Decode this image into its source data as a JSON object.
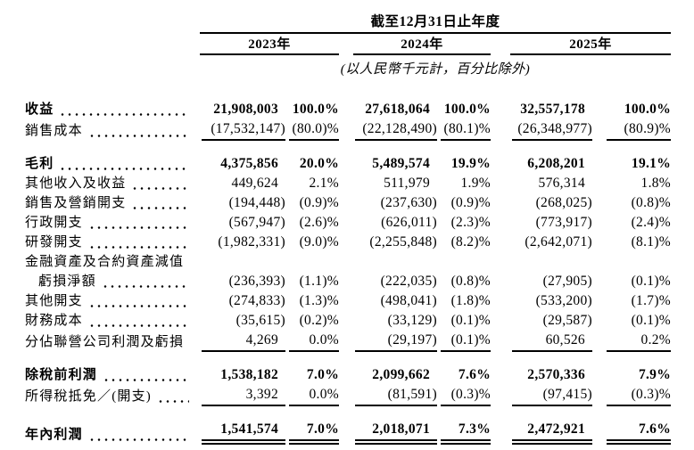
{
  "page": {
    "background_color": "#ffffff",
    "text_color": "#000000",
    "rule_color": "#000000"
  },
  "table": {
    "period_header": "截至12月31日止年度",
    "unit_note": "(以人民幣千元計，百分比除外)",
    "years": [
      {
        "label": "2023年"
      },
      {
        "label": "2024年"
      },
      {
        "label": "2025年"
      }
    ],
    "rows": [
      {
        "type": "data",
        "label": "收益",
        "bold": true,
        "dots": true,
        "cells": [
          "21,908,003",
          "100.0%",
          "27,618,064",
          "100.0%",
          "32,557,178",
          "100.0%"
        ]
      },
      {
        "type": "data",
        "label": "銷售成本",
        "dots": true,
        "underline": "single",
        "cells": [
          "(17,532,147)",
          "(80.0)%",
          "(22,128,490)",
          "(80.1)%",
          "(26,348,977)",
          "(80.9)%"
        ]
      },
      {
        "type": "spacer"
      },
      {
        "type": "data",
        "label": "毛利",
        "bold": true,
        "dots": true,
        "cells": [
          "4,375,856",
          "20.0%",
          "5,489,574",
          "19.9%",
          "6,208,201",
          "19.1%"
        ]
      },
      {
        "type": "data",
        "label": "其他收入及收益",
        "dots": true,
        "cells": [
          "449,624",
          "2.1%",
          "511,979",
          "1.9%",
          "576,314",
          "1.8%"
        ]
      },
      {
        "type": "data",
        "label": "銷售及營銷開支",
        "dots": true,
        "cells": [
          "(194,448)",
          "(0.9)%",
          "(237,630)",
          "(0.9)%",
          "(268,025)",
          "(0.8)%"
        ]
      },
      {
        "type": "data",
        "label": "行政開支",
        "dots": true,
        "cells": [
          "(567,947)",
          "(2.6)%",
          "(626,011)",
          "(2.3)%",
          "(773,917)",
          "(2.4)%"
        ]
      },
      {
        "type": "data",
        "label": "研發開支",
        "dots": true,
        "cells": [
          "(1,982,331)",
          "(9.0)%",
          "(2,255,848)",
          "(8.2)%",
          "(2,642,071)",
          "(8.1)%"
        ]
      },
      {
        "type": "data",
        "label": "金融資產及合約資產減值",
        "dots": false,
        "cells": null
      },
      {
        "type": "data",
        "label": "虧損淨額",
        "indent": true,
        "dots": true,
        "cells": [
          "(236,393)",
          "(1.1)%",
          "(222,035)",
          "(0.8)%",
          "(27,905)",
          "(0.1)%"
        ]
      },
      {
        "type": "data",
        "label": "其他開支",
        "dots": true,
        "cells": [
          "(274,833)",
          "(1.3)%",
          "(498,041)",
          "(1.8)%",
          "(533,200)",
          "(1.7)%"
        ]
      },
      {
        "type": "data",
        "label": "財務成本",
        "dots": true,
        "cells": [
          "(35,615)",
          "(0.2)%",
          "(33,129)",
          "(0.1)%",
          "(29,587)",
          "(0.1)%"
        ]
      },
      {
        "type": "data",
        "label": "分佔聯營公司利潤及虧損",
        "dots": false,
        "underline": "single",
        "cells": [
          "4,269",
          "0.0%",
          "(29,197)",
          "(0.1)%",
          "60,526",
          "0.2%"
        ]
      },
      {
        "type": "spacer"
      },
      {
        "type": "data",
        "label": "除稅前利潤",
        "bold": true,
        "dots": true,
        "cells": [
          "1,538,182",
          "7.0%",
          "2,099,662",
          "7.6%",
          "2,570,336",
          "7.9%"
        ]
      },
      {
        "type": "data",
        "label": "所得稅抵免／(開支)",
        "dots": true,
        "underline": "single",
        "cells": [
          "3,392",
          "0.0%",
          "(81,591)",
          "(0.3)%",
          "(97,415)",
          "(0.3)%"
        ]
      },
      {
        "type": "spacer"
      },
      {
        "type": "data",
        "label": "年內利潤",
        "bold": true,
        "dots": true,
        "underline": "double",
        "cells": [
          "1,541,574",
          "7.0%",
          "2,018,071",
          "7.3%",
          "2,472,921",
          "7.6%"
        ]
      }
    ]
  }
}
